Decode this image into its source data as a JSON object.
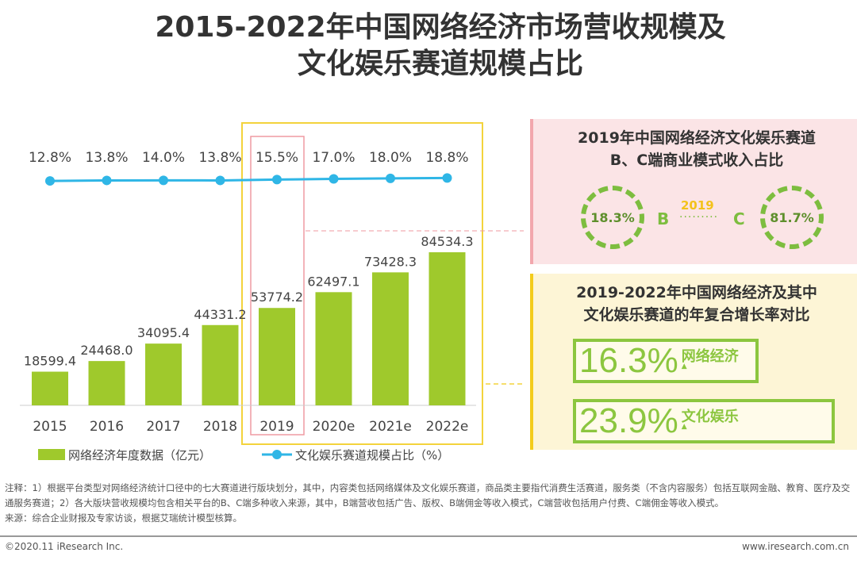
{
  "title_lines": [
    "2015-2022年中国网络经济市场营收规模及",
    "文化娱乐赛道规模占比"
  ],
  "chart_data": {
    "type": "bar+line",
    "categories": [
      "2015",
      "2016",
      "2017",
      "2018",
      "2019",
      "2020e",
      "2021e",
      "2022e"
    ],
    "series": [
      {
        "name": "网络经济年度数据（亿元）",
        "type": "bar",
        "color": "#9fc92c",
        "values": [
          18599.4,
          24468.0,
          34095.4,
          44331.2,
          53774.2,
          62497.1,
          73428.3,
          84534.3
        ],
        "labels": [
          "18599.4",
          "24468.0",
          "34095.4",
          "44331.2",
          "53774.2",
          "62497.1",
          "73428.3",
          "84534.3"
        ]
      },
      {
        "name": "文化娱乐赛道规模占比（%）",
        "type": "line",
        "color": "#2fb6e6",
        "values": [
          12.8,
          13.8,
          14.0,
          13.8,
          15.5,
          17.0,
          18.0,
          18.8
        ],
        "labels": [
          "12.8%",
          "13.8%",
          "14.0%",
          "13.8%",
          "15.5%",
          "17.0%",
          "18.0%",
          "18.8%"
        ]
      }
    ],
    "highlight_category": "2019",
    "legend_placement": "bottom"
  },
  "panel1": {
    "title_lines": [
      "2019年中国网络经济文化娱乐赛道",
      "B、C端商业模式收入占比"
    ],
    "b_value": "18.3%",
    "b_label": "B",
    "year": "2019",
    "c_label": "C",
    "c_value": "81.7%"
  },
  "panel2": {
    "title_lines": [
      "2019-2022年中国网络经济及其中",
      "文化娱乐赛道的年复合增长率对比"
    ],
    "rates": [
      {
        "value": "16.3%",
        "label": "网络经济"
      },
      {
        "value": "23.9%",
        "label": "文化娱乐"
      }
    ]
  },
  "notes": [
    "注释：1）根据平台类型对网络经济统计口径中的七大赛道进行版块划分，其中，内容类包括网络媒体及文化娱乐赛道，商品类主要指代消费生活赛道，服务类（不含内容服务）包括互联网金融、教育、医疗及交通服务赛道；2）各大版块营收规模均包含相关平台的B、C端多种收入来源，其中，B端营收包括广告、版权、B端佣金等收入模式，C端营收包括用户付费、C端佣金等收入模式。",
    "来源：综合企业财报及专家访谈，根据艾瑞统计模型核算。"
  ],
  "footer": {
    "copyright": "©2020.11 iResearch Inc.",
    "site": "www.iresearch.com.cn"
  }
}
